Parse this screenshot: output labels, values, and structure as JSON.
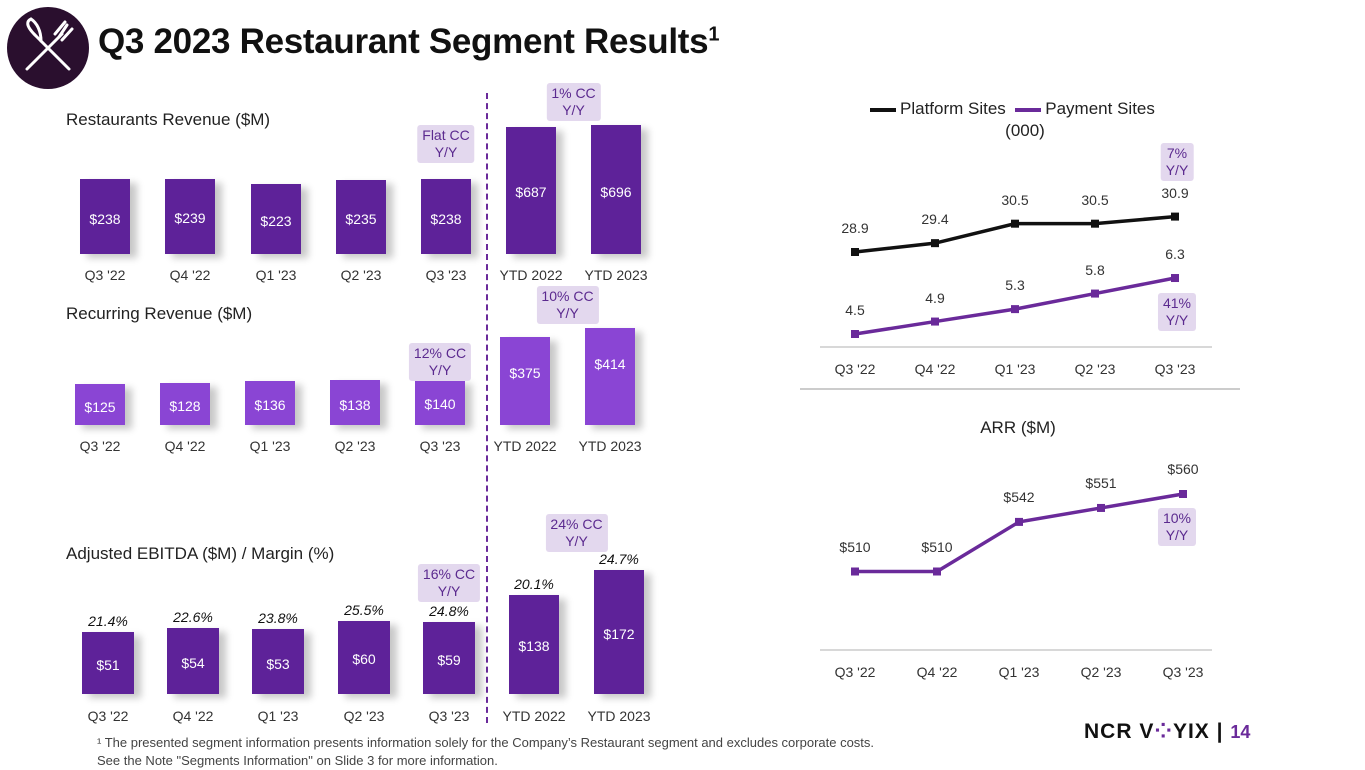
{
  "header": {
    "title": "Q3 2023 Restaurant Segment Results",
    "title_sup": "1"
  },
  "footnote": {
    "line1": "¹ The presented segment information presents information solely for the Company’s Restaurant segment and excludes corporate costs.",
    "line2": "See the Note \"Segments Information\" on Slide 3 for more information."
  },
  "brand": {
    "part1": "NCR V",
    "part2": "YIX",
    "separator": " | ",
    "page": "14"
  },
  "colors": {
    "dark_purple": "#5e2299",
    "light_purple": "#8a45d4",
    "badge_bg": "#e3d8ee",
    "badge_text": "#5b2a8f",
    "platform_line": "#111111",
    "payment_line": "#6a2a9a"
  },
  "chart_data": [
    {
      "id": "restaurants_revenue",
      "type": "bar",
      "title": "Restaurants Revenue ($M)",
      "categories": [
        "Q3 '22",
        "Q4 '22",
        "Q1 '23",
        "Q2 '23",
        "Q3 '23"
      ],
      "values": [
        238,
        239,
        223,
        235,
        238
      ],
      "value_labels": [
        "$238",
        "$239",
        "$223",
        "$235",
        "$238"
      ],
      "badge": "Flat CC\nY/Y",
      "ytd_categories": [
        "YTD 2022",
        "YTD 2023"
      ],
      "ytd_values": [
        687,
        696
      ],
      "ytd_value_labels": [
        "$687",
        "$696"
      ],
      "ytd_badge": "1% CC\nY/Y"
    },
    {
      "id": "recurring_revenue",
      "type": "bar",
      "title": "Recurring Revenue ($M)",
      "categories": [
        "Q3 '22",
        "Q4 '22",
        "Q1 '23",
        "Q2 '23",
        "Q3 '23"
      ],
      "values": [
        125,
        128,
        136,
        138,
        140
      ],
      "value_labels": [
        "$125",
        "$128",
        "$136",
        "$138",
        "$140"
      ],
      "badge": "12% CC\nY/Y",
      "ytd_categories": [
        "YTD 2022",
        "YTD 2023"
      ],
      "ytd_values": [
        375,
        414
      ],
      "ytd_value_labels": [
        "$375",
        "$414"
      ],
      "ytd_badge": "10% CC\nY/Y"
    },
    {
      "id": "adjusted_ebitda",
      "type": "bar",
      "title": "Adjusted EBITDA ($M) / Margin (%)",
      "categories": [
        "Q3 '22",
        "Q4 '22",
        "Q1 '23",
        "Q2 '23",
        "Q3 '23"
      ],
      "values": [
        51,
        54,
        53,
        60,
        59
      ],
      "value_labels": [
        "$51",
        "$54",
        "$53",
        "$60",
        "$59"
      ],
      "margins": [
        "21.4%",
        "22.6%",
        "23.8%",
        "25.5%",
        "24.8%"
      ],
      "badge": "16% CC\nY/Y",
      "ytd_categories": [
        "YTD 2022",
        "YTD 2023"
      ],
      "ytd_values": [
        138,
        172
      ],
      "ytd_value_labels": [
        "$138",
        "$172"
      ],
      "ytd_margins": [
        "20.1%",
        "24.7%"
      ],
      "ytd_badge": "24% CC\nY/Y"
    },
    {
      "id": "sites",
      "type": "line",
      "unit": "(000)",
      "categories": [
        "Q3 '22",
        "Q4 '22",
        "Q1 '23",
        "Q2 '23",
        "Q3 '23"
      ],
      "series": [
        {
          "name": "Platform Sites",
          "values": [
            28.9,
            29.4,
            30.5,
            30.5,
            30.9
          ],
          "labels": [
            "28.9",
            "29.4",
            "30.5",
            "30.5",
            "30.9"
          ],
          "badge": "7%\nY/Y"
        },
        {
          "name": "Payment Sites",
          "values": [
            4.5,
            4.9,
            5.3,
            5.8,
            6.3
          ],
          "labels": [
            "4.5",
            "4.9",
            "5.3",
            "5.8",
            "6.3"
          ],
          "badge": "41%\nY/Y"
        }
      ]
    },
    {
      "id": "arr",
      "type": "line",
      "title": "ARR ($M)",
      "categories": [
        "Q3 '22",
        "Q4 '22",
        "Q1 '23",
        "Q2 '23",
        "Q3 '23"
      ],
      "values": [
        510,
        510,
        542,
        551,
        560
      ],
      "labels": [
        "$510",
        "$510",
        "$542",
        "$551",
        "$560"
      ],
      "ylim": [
        500,
        570
      ],
      "badge": "10%\nY/Y"
    }
  ]
}
